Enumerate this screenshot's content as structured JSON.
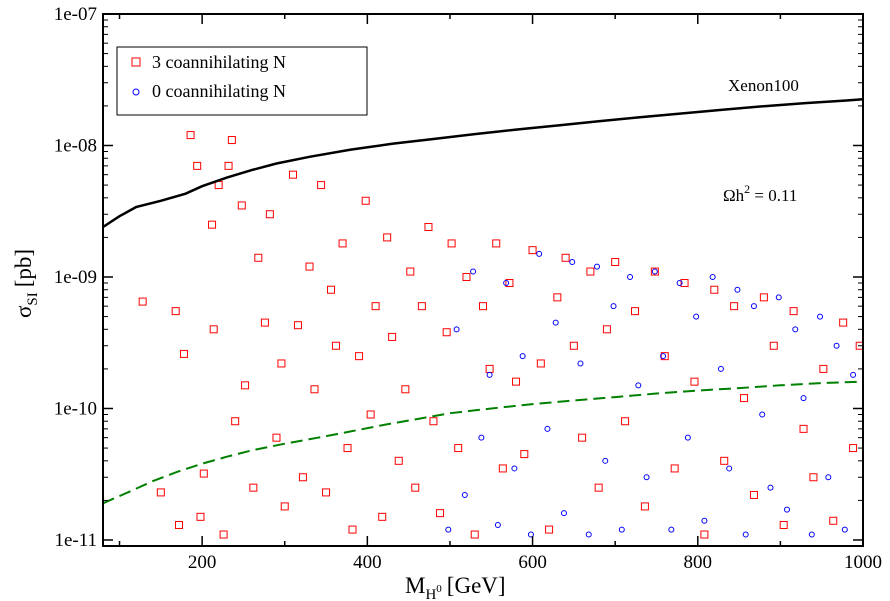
{
  "chart_data": {
    "type": "scatter",
    "title": "",
    "x_axis": {
      "label_main": "M",
      "label_sub": "H",
      "label_sup": "0",
      "label_unit": "[GeV]",
      "range": [
        80,
        1000
      ],
      "ticks": [
        200,
        400,
        600,
        800,
        1000
      ],
      "tick_labels": [
        "200",
        "400",
        "600",
        "800",
        "1000"
      ]
    },
    "y_axis": {
      "label_main": "σ",
      "label_sub": "SI",
      "label_unit": "[pb]",
      "scale": "log",
      "range": [
        9e-12,
        1e-07
      ],
      "ticks": [
        1e-11,
        1e-10,
        1e-09,
        1e-08,
        1e-07
      ],
      "tick_labels": [
        "1e-11",
        "1e-10",
        "1e-09",
        "1e-08",
        "1e-07"
      ]
    },
    "grid": false,
    "legend": {
      "placement": "top-left",
      "entries": [
        {
          "label": "3 coannihilating N",
          "color": "#ff0000",
          "marker": "square"
        },
        {
          "label": "0 coannihilating N",
          "color": "#0000ff",
          "marker": "circle"
        }
      ]
    },
    "annotations": {
      "xenon_label": "Xenon100",
      "omega_label_base": "Ωh",
      "omega_label_sup": "2",
      "omega_label_value": " = 0.11"
    },
    "series": [
      {
        "name": "3 coannihilating N",
        "color": "#ff0000",
        "marker": "square",
        "x": [
          128,
          150,
          168,
          172,
          178,
          186,
          194,
          198,
          202,
          212,
          214,
          220,
          226,
          232,
          236,
          240,
          248,
          252,
          262,
          268,
          276,
          282,
          290,
          296,
          300,
          310,
          316,
          322,
          330,
          336,
          344,
          350,
          356,
          362,
          370,
          376,
          382,
          390,
          398,
          404,
          410,
          418,
          424,
          430,
          438,
          446,
          452,
          458,
          466,
          474,
          480,
          488,
          496,
          502,
          510,
          520,
          530,
          540,
          548,
          556,
          564,
          572,
          580,
          590,
          600,
          610,
          620,
          630,
          640,
          650,
          660,
          670,
          680,
          690,
          700,
          712,
          724,
          736,
          748,
          760,
          772,
          784,
          796,
          808,
          820,
          832,
          844,
          856,
          868,
          880,
          892,
          904,
          916,
          928,
          940,
          952,
          964,
          976,
          988,
          996
        ],
        "y": [
          6.5e-10,
          2.3e-11,
          5.5e-10,
          1.3e-11,
          2.6e-10,
          1.2e-08,
          7e-09,
          1.5e-11,
          3.2e-11,
          2.5e-09,
          4e-10,
          5e-09,
          1.1e-11,
          7e-09,
          1.1e-08,
          8e-11,
          3.5e-09,
          1.5e-10,
          2.5e-11,
          1.4e-09,
          4.5e-10,
          3e-09,
          6e-11,
          2.2e-10,
          1.8e-11,
          6e-09,
          4.3e-10,
          3e-11,
          1.2e-09,
          1.4e-10,
          5e-09,
          2.3e-11,
          8e-10,
          3e-10,
          1.8e-09,
          5e-11,
          1.2e-11,
          2.5e-10,
          3.8e-09,
          9e-11,
          6e-10,
          1.5e-11,
          2e-09,
          3.5e-10,
          4e-11,
          1.4e-10,
          1.1e-09,
          2.5e-11,
          6e-10,
          2.4e-09,
          8e-11,
          1.6e-11,
          3.8e-10,
          1.8e-09,
          5e-11,
          1e-09,
          1.1e-11,
          6e-10,
          2e-10,
          1.8e-09,
          3.5e-11,
          9e-10,
          1.6e-10,
          4.5e-11,
          1.6e-09,
          2.2e-10,
          1.2e-11,
          7e-10,
          1.4e-09,
          3e-10,
          6e-11,
          1.1e-09,
          2.5e-11,
          4e-10,
          1.3e-09,
          8e-11,
          5.5e-10,
          1.8e-11,
          1.1e-09,
          2.5e-10,
          3.5e-11,
          9e-10,
          1.6e-10,
          1.1e-11,
          8e-10,
          4e-11,
          6e-10,
          1.2e-10,
          2.2e-11,
          7e-10,
          3e-10,
          1.3e-11,
          5.5e-10,
          7e-11,
          3e-11,
          2e-10,
          1.4e-11,
          4.5e-10,
          5e-11,
          3e-10
        ]
      },
      {
        "name": "0 coannihilating N",
        "color": "#0000ff",
        "marker": "circle",
        "x": [
          498,
          508,
          518,
          528,
          538,
          548,
          558,
          568,
          578,
          588,
          598,
          608,
          618,
          628,
          638,
          648,
          658,
          668,
          678,
          688,
          698,
          708,
          718,
          728,
          738,
          748,
          758,
          768,
          778,
          788,
          798,
          808,
          818,
          828,
          838,
          848,
          858,
          868,
          878,
          888,
          898,
          908,
          918,
          928,
          938,
          948,
          958,
          968,
          978,
          988
        ],
        "y": [
          1.2e-11,
          4e-10,
          2.2e-11,
          1.1e-09,
          6e-11,
          1.8e-10,
          1.3e-11,
          9e-10,
          3.5e-11,
          2.5e-10,
          1.1e-11,
          1.5e-09,
          7e-11,
          4.5e-10,
          1.6e-11,
          1.3e-09,
          2.2e-10,
          1.1e-11,
          1.2e-09,
          4e-11,
          6e-10,
          1.2e-11,
          1e-09,
          1.5e-10,
          3e-11,
          1.1e-09,
          2.5e-10,
          1.2e-11,
          9e-10,
          6e-11,
          5e-10,
          1.4e-11,
          1e-09,
          2e-10,
          3.5e-11,
          8e-10,
          1.1e-11,
          6e-10,
          9e-11,
          2.5e-11,
          7e-10,
          1.7e-11,
          4e-10,
          1.2e-10,
          1.1e-11,
          5e-10,
          3e-11,
          3e-10,
          1.2e-11,
          1.8e-10
        ]
      },
      {
        "name": "Xenon100",
        "type": "line",
        "style": "solid",
        "color": "#000000",
        "x": [
          80,
          100,
          120,
          150,
          180,
          200,
          230,
          260,
          290,
          330,
          380,
          430,
          480,
          530,
          580,
          630,
          680,
          730,
          780,
          830,
          880,
          930,
          980,
          1000
        ],
        "y": [
          2.4e-09,
          2.9e-09,
          3.4e-09,
          3.8e-09,
          4.3e-09,
          4.9e-09,
          5.7e-09,
          6.5e-09,
          7.3e-09,
          8.2e-09,
          9.3e-09,
          1.03e-08,
          1.12e-08,
          1.22e-08,
          1.32e-08,
          1.42e-08,
          1.53e-08,
          1.64e-08,
          1.75e-08,
          1.87e-08,
          1.99e-08,
          2.1e-08,
          2.2e-08,
          2.25e-08
        ]
      },
      {
        "name": "Ωh² = 0.11",
        "type": "line",
        "style": "dashed",
        "color": "#008000",
        "x": [
          80,
          110,
          140,
          170,
          200,
          230,
          260,
          300,
          340,
          380,
          420,
          460,
          500,
          550,
          600,
          650,
          700,
          750,
          800,
          850,
          900,
          950,
          1000
        ],
        "y": [
          1.9e-11,
          2.3e-11,
          2.8e-11,
          3.3e-11,
          3.8e-11,
          4.3e-11,
          4.8e-11,
          5.4e-11,
          6e-11,
          6.7e-11,
          7.5e-11,
          8.3e-11,
          9.2e-11,
          1e-10,
          1.08e-10,
          1.15e-10,
          1.22e-10,
          1.3e-10,
          1.37e-10,
          1.43e-10,
          1.5e-10,
          1.56e-10,
          1.6e-10
        ]
      }
    ]
  }
}
